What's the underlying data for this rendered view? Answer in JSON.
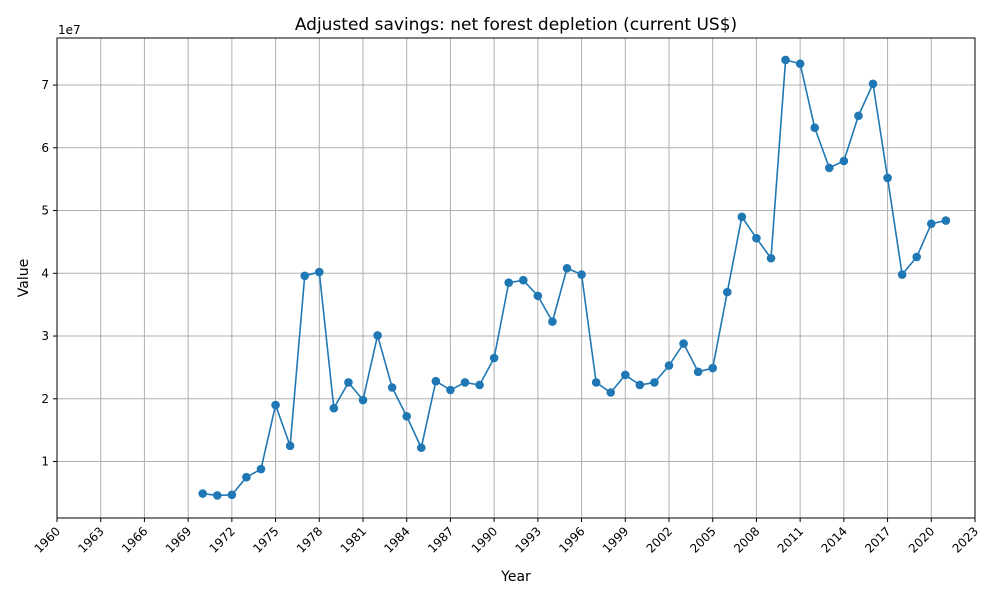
{
  "chart_data": {
    "type": "line",
    "title": "Adjusted savings: net forest depletion (current US$)",
    "xlabel": "Year",
    "ylabel": "Value",
    "y_offset_label": "1e7",
    "xlim": [
      1960,
      2023
    ],
    "ylim": [
      1000000,
      77500000
    ],
    "x_ticks": [
      1960,
      1963,
      1966,
      1969,
      1972,
      1975,
      1978,
      1981,
      1984,
      1987,
      1990,
      1993,
      1996,
      1999,
      2002,
      2005,
      2008,
      2011,
      2014,
      2017,
      2020,
      2023
    ],
    "y_ticks": [
      10000000,
      20000000,
      30000000,
      40000000,
      50000000,
      60000000,
      70000000
    ],
    "y_tick_labels": [
      "1",
      "2",
      "3",
      "4",
      "5",
      "6",
      "7"
    ],
    "grid": true,
    "series": [
      {
        "color": "#1f77b4",
        "marker": "circle",
        "x": [
          1970,
          1971,
          1972,
          1973,
          1974,
          1975,
          1976,
          1977,
          1978,
          1979,
          1980,
          1981,
          1982,
          1983,
          1984,
          1985,
          1986,
          1987,
          1988,
          1989,
          1990,
          1991,
          1992,
          1993,
          1994,
          1995,
          1996,
          1997,
          1998,
          1999,
          2000,
          2001,
          2002,
          2003,
          2004,
          2005,
          2006,
          2007,
          2008,
          2009,
          2010,
          2011,
          2012,
          2013,
          2014,
          2015,
          2016,
          2017,
          2018,
          2019,
          2020,
          2021
        ],
        "y": [
          4900000,
          4600000,
          4700000,
          7500000,
          8800000,
          19000000,
          12500000,
          39600000,
          40200000,
          18500000,
          22600000,
          19800000,
          30100000,
          21800000,
          17200000,
          12200000,
          22800000,
          21400000,
          22600000,
          22200000,
          26500000,
          38500000,
          38900000,
          36400000,
          32300000,
          40800000,
          39800000,
          22600000,
          21000000,
          23800000,
          22200000,
          22600000,
          25300000,
          28800000,
          24300000,
          24900000,
          37000000,
          49000000,
          45600000,
          42400000,
          74000000,
          73400000,
          63200000,
          56800000,
          57900000,
          65100000,
          70200000,
          55200000,
          39800000,
          42600000,
          47900000,
          48400000
        ]
      }
    ]
  }
}
